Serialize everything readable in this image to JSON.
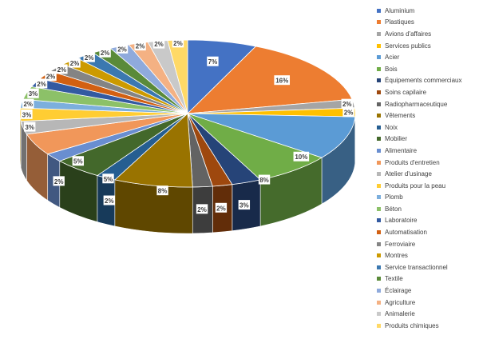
{
  "chart_data": {
    "type": "pie",
    "style": "3d",
    "title": "",
    "legend_position": "right",
    "categories": [
      "Aluminium",
      "Plastiques",
      "Avions d'affaires",
      "Services publics",
      "Acier",
      "Bois",
      "Équipements commerciaux",
      "Soins capilaire",
      "Radiopharmaceutique",
      "Vêtements",
      "Noix",
      "Mobilier",
      "Alimentaire",
      "Produits d'entretien",
      "Atelier d'usinage",
      "Produits pour la peau",
      "Plomb",
      "Béton",
      "Laboratoire",
      "Automatisation",
      "Ferroviaire",
      "Montres",
      "Service transactionnel",
      "Textile",
      "Éclairage",
      "Agriculture",
      "Animalerie",
      "Produits chimiques"
    ],
    "values": [
      7,
      16,
      2,
      2,
      10,
      8,
      3,
      2,
      2,
      8,
      2,
      5,
      2,
      5,
      3,
      3,
      2,
      3,
      2,
      2,
      2,
      2,
      2,
      2,
      2,
      2,
      2,
      2
    ],
    "labels": [
      "7%",
      "16%",
      "2%",
      "2%",
      "10%",
      "8%",
      "3%",
      "2%",
      "2%",
      "8%",
      "2%",
      "5%",
      "2%",
      "5%",
      "3%",
      "3%",
      "2%",
      "3%",
      "2%",
      "2%",
      "2%",
      "2%",
      "2%",
      "2%",
      "2%",
      "2%",
      "2%",
      "2%"
    ],
    "colors": [
      "#4472C4",
      "#ED7D31",
      "#A5A5A5",
      "#FFC000",
      "#5B9BD5",
      "#70AD47",
      "#264478",
      "#9E480E",
      "#636363",
      "#997300",
      "#255E91",
      "#43682B",
      "#698ED0",
      "#F1975A",
      "#B7B7B7",
      "#FFCD33",
      "#7CAFDD",
      "#8CC168",
      "#335AA1",
      "#D26012",
      "#848484",
      "#CC9A00",
      "#3B78B0",
      "#5A8A39",
      "#8FAADC",
      "#F4B183",
      "#C9C9C9",
      "#FFD966"
    ]
  }
}
